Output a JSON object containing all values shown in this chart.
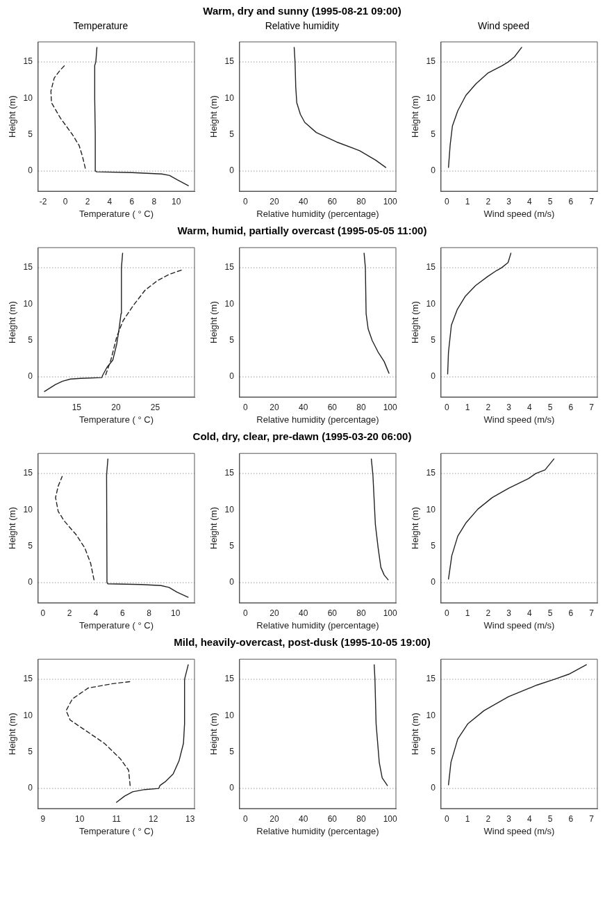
{
  "chart_data": [
    {
      "type": "line",
      "subtitle": "Temperature",
      "xlabel": "Temperature ( ° C)",
      "ylabel": "Height (m)",
      "xlim": [
        -2.45,
        11.65
      ],
      "xticks": [
        -2,
        0,
        2,
        4,
        6,
        8,
        10
      ],
      "ylim": [
        -2.76,
        17.76
      ],
      "yticks": [
        0,
        5,
        10,
        15
      ],
      "marker": "none",
      "ref_lines": [
        {
          "axis": "y",
          "value": 0,
          "color": "#999999",
          "line_style": "dotted"
        },
        {
          "axis": "y",
          "value": 15,
          "color": "#999999",
          "line_style": "dotted"
        }
      ],
      "series": [
        {
          "color": "#222222",
          "line_style": "solid",
          "x": [
            11.1,
            10.1,
            9.4,
            8.7,
            6,
            2.8,
            2.75,
            2.7,
            2.65,
            2.65,
            2.75,
            2.85
          ],
          "values": [
            -2,
            -1.2,
            -0.6,
            -0.4,
            -0.2,
            -0.1,
            0,
            5,
            10,
            14.5,
            15,
            17
          ]
        },
        {
          "color": "#222222",
          "line_style": "dashed",
          "x": [
            1.8,
            1.55,
            1.25,
            0.65,
            -0.45,
            -1.25,
            -1.3,
            -1,
            -0.45,
            0
          ],
          "values": [
            0.4,
            2,
            3.5,
            5,
            7.3,
            9.4,
            11,
            12.8,
            13.9,
            14.6
          ]
        }
      ]
    },
    {
      "type": "line",
      "title": "Warm, dry and sunny (1995-08-21 09:00)",
      "subtitle": "Relative humidity",
      "xlabel": "Relative humidity (percentage)",
      "ylabel": "Height (m)",
      "xlim": [
        -4,
        104
      ],
      "xticks": [
        0,
        20,
        40,
        60,
        80,
        100
      ],
      "ylim": [
        -2.76,
        17.76
      ],
      "yticks": [
        0,
        5,
        10,
        15
      ],
      "marker": "none",
      "ref_lines": [
        {
          "axis": "y",
          "value": 0,
          "color": "#999999",
          "line_style": "dotted"
        },
        {
          "axis": "y",
          "value": 15,
          "color": "#999999",
          "line_style": "dotted"
        }
      ],
      "series": [
        {
          "color": "#222222",
          "line_style": "solid",
          "x": [
            97,
            90,
            79,
            63,
            49,
            41,
            38,
            35.5,
            34.8,
            34.3,
            33.7
          ],
          "values": [
            0.5,
            1.5,
            2.8,
            4,
            5.3,
            6.7,
            7.8,
            9.4,
            11.5,
            15,
            17
          ]
        }
      ]
    },
    {
      "type": "line",
      "subtitle": "Wind speed",
      "xlabel": "Wind speed (m/s)",
      "ylabel": "Height (m)",
      "xlim": [
        -0.28,
        7.28
      ],
      "xticks": [
        0,
        1,
        2,
        3,
        4,
        5,
        6,
        7
      ],
      "ylim": [
        -2.76,
        17.76
      ],
      "yticks": [
        0,
        5,
        10,
        15
      ],
      "marker": "none",
      "ref_lines": [
        {
          "axis": "y",
          "value": 0,
          "color": "#999999",
          "line_style": "dotted"
        },
        {
          "axis": "y",
          "value": 15,
          "color": "#999999",
          "line_style": "dotted"
        }
      ],
      "series": [
        {
          "color": "#222222",
          "line_style": "solid",
          "x": [
            0.08,
            0.16,
            0.27,
            0.53,
            0.92,
            1.41,
            2,
            2.68,
            2.97,
            3.27,
            3.62
          ],
          "values": [
            0.5,
            3.55,
            6.2,
            8.3,
            10.4,
            12,
            13.5,
            14.5,
            15,
            15.7,
            17
          ]
        }
      ]
    },
    {
      "type": "line",
      "xlabel": "Temperature ( ° C)",
      "ylabel": "Height (m)",
      "xlim": [
        10.1,
        30
      ],
      "xticks": [
        15,
        20,
        25
      ],
      "ylim": [
        -2.76,
        17.76
      ],
      "yticks": [
        0,
        5,
        10,
        15
      ],
      "marker": "none",
      "ref_lines": [
        {
          "axis": "y",
          "value": 0,
          "color": "#999999",
          "line_style": "dotted"
        },
        {
          "axis": "y",
          "value": 15,
          "color": "#999999",
          "line_style": "dotted"
        }
      ],
      "series": [
        {
          "color": "#222222",
          "line_style": "solid",
          "x": [
            10.9,
            12.3,
            13.2,
            14.2,
            15.5,
            18.2,
            18.3,
            18.85,
            19.6,
            20.1,
            20.4,
            20.65,
            20.7,
            20.85
          ],
          "values": [
            -2,
            -1.05,
            -0.6,
            -0.3,
            -0.2,
            -0.1,
            0.2,
            1.3,
            2.3,
            4.5,
            6.6,
            8.7,
            15,
            17
          ]
        },
        {
          "color": "#222222",
          "line_style": "dashed",
          "x": [
            18.7,
            19.35,
            20.1,
            20.9,
            22.2,
            23.7,
            25.25,
            26.8,
            28.4
          ],
          "values": [
            0.3,
            2.3,
            5.5,
            7.7,
            9.8,
            11.9,
            13.2,
            14.1,
            14.7
          ]
        }
      ]
    },
    {
      "type": "line",
      "title": "Warm, humid, partially overcast (1995-05-05 11:00)",
      "xlabel": "Relative humidity (percentage)",
      "ylabel": "Height (m)",
      "xlim": [
        -4,
        104
      ],
      "xticks": [
        0,
        20,
        40,
        60,
        80,
        100
      ],
      "ylim": [
        -2.76,
        17.76
      ],
      "yticks": [
        0,
        5,
        10,
        15
      ],
      "marker": "none",
      "ref_lines": [
        {
          "axis": "y",
          "value": 0,
          "color": "#999999",
          "line_style": "dotted"
        },
        {
          "axis": "y",
          "value": 15,
          "color": "#999999",
          "line_style": "dotted"
        }
      ],
      "series": [
        {
          "color": "#222222",
          "line_style": "solid",
          "x": [
            99.2,
            95.9,
            91.7,
            87.6,
            84.8,
            83.4,
            82.9,
            82
          ],
          "values": [
            0.5,
            2.1,
            3.4,
            5,
            6.6,
            8.7,
            15,
            17
          ]
        }
      ]
    },
    {
      "type": "line",
      "xlabel": "Wind speed (m/s)",
      "ylabel": "Height (m)",
      "xlim": [
        -0.28,
        7.28
      ],
      "xticks": [
        0,
        1,
        2,
        3,
        4,
        5,
        6,
        7
      ],
      "ylim": [
        -2.76,
        17.76
      ],
      "yticks": [
        0,
        5,
        10,
        15
      ],
      "marker": "none",
      "ref_lines": [
        {
          "axis": "y",
          "value": 0,
          "color": "#999999",
          "line_style": "dotted"
        },
        {
          "axis": "y",
          "value": 15,
          "color": "#999999",
          "line_style": "dotted"
        }
      ],
      "series": [
        {
          "color": "#222222",
          "line_style": "solid",
          "x": [
            0.04,
            0.08,
            0.22,
            0.51,
            0.9,
            1.39,
            1.98,
            2.4,
            2.65,
            2.96,
            3.1
          ],
          "values": [
            0.4,
            3.4,
            7.1,
            9.3,
            11.1,
            12.55,
            13.8,
            14.6,
            15,
            15.7,
            17
          ]
        }
      ]
    },
    {
      "type": "line",
      "xlabel": "Temperature ( ° C)",
      "ylabel": "Height (m)",
      "xlim": [
        -0.36,
        11.43
      ],
      "xticks": [
        0,
        2,
        4,
        6,
        8,
        10
      ],
      "ylim": [
        -2.76,
        17.76
      ],
      "yticks": [
        0,
        5,
        10,
        15
      ],
      "marker": "none",
      "ref_lines": [
        {
          "axis": "y",
          "value": 0,
          "color": "#999999",
          "line_style": "dotted"
        },
        {
          "axis": "y",
          "value": 15,
          "color": "#999999",
          "line_style": "dotted"
        }
      ],
      "series": [
        {
          "color": "#222222",
          "line_style": "solid",
          "x": [
            10.95,
            10.1,
            9.5,
            8.9,
            7.4,
            4.9,
            4.83,
            4.8,
            4.9
          ],
          "values": [
            -2,
            -1.3,
            -0.65,
            -0.4,
            -0.25,
            -0.15,
            0,
            14.8,
            17
          ]
        },
        {
          "color": "#222222",
          "line_style": "dashed",
          "x": [
            3.85,
            3.6,
            3.15,
            2.5,
            1.6,
            1.15,
            0.95,
            1.15,
            1.45
          ],
          "values": [
            0.4,
            2.65,
            4.8,
            6.6,
            8.5,
            9.8,
            11.7,
            13.25,
            14.6
          ]
        }
      ]
    },
    {
      "type": "line",
      "title": "Cold, dry, clear, pre-dawn (1995-03-20 06:00)",
      "xlabel": "Relative humidity (percentage)",
      "ylabel": "Height (m)",
      "xlim": [
        -4,
        104
      ],
      "xticks": [
        0,
        20,
        40,
        60,
        80,
        100
      ],
      "ylim": [
        -2.76,
        17.76
      ],
      "yticks": [
        0,
        5,
        10,
        15
      ],
      "marker": "none",
      "ref_lines": [
        {
          "axis": "y",
          "value": 0,
          "color": "#999999",
          "line_style": "dotted"
        },
        {
          "axis": "y",
          "value": 15,
          "color": "#999999",
          "line_style": "dotted"
        }
      ],
      "series": [
        {
          "color": "#222222",
          "line_style": "solid",
          "x": [
            98.6,
            95.9,
            93.6,
            91.7,
            89.8,
            88.1,
            87
          ],
          "values": [
            0.4,
            1.05,
            2.1,
            4.8,
            8,
            14.8,
            17
          ]
        }
      ]
    },
    {
      "type": "line",
      "xlabel": "Wind speed (m/s)",
      "ylabel": "Height (m)",
      "xlim": [
        -0.28,
        7.28
      ],
      "xticks": [
        0,
        1,
        2,
        3,
        4,
        5,
        6,
        7
      ],
      "ylim": [
        -2.76,
        17.76
      ],
      "yticks": [
        0,
        5,
        10,
        15
      ],
      "marker": "none",
      "ref_lines": [
        {
          "axis": "y",
          "value": 0,
          "color": "#999999",
          "line_style": "dotted"
        },
        {
          "axis": "y",
          "value": 15,
          "color": "#999999",
          "line_style": "dotted"
        }
      ],
      "series": [
        {
          "color": "#222222",
          "line_style": "solid",
          "x": [
            0.08,
            0.24,
            0.53,
            0.92,
            1.5,
            2.2,
            3,
            3.95,
            4.3,
            4.75,
            5.18
          ],
          "values": [
            0.5,
            3.7,
            6.4,
            8.2,
            10.1,
            11.7,
            13,
            14.3,
            15,
            15.5,
            17
          ]
        }
      ]
    },
    {
      "type": "line",
      "xlabel": "Temperature ( ° C)",
      "ylabel": "Height (m)",
      "xlim": [
        8.87,
        13.12
      ],
      "xticks": [
        9,
        10,
        11,
        12,
        13
      ],
      "ylim": [
        -2.76,
        17.76
      ],
      "yticks": [
        0,
        5,
        10,
        15
      ],
      "marker": "none",
      "ref_lines": [
        {
          "axis": "y",
          "value": 0,
          "color": "#999999",
          "line_style": "dotted"
        },
        {
          "axis": "y",
          "value": 15,
          "color": "#999999",
          "line_style": "dotted"
        }
      ],
      "series": [
        {
          "color": "#222222",
          "line_style": "solid",
          "x": [
            11,
            11.22,
            11.44,
            11.77,
            12.15,
            12.18,
            12.32,
            12.54,
            12.7,
            12.82,
            12.85,
            12.85,
            12.95
          ],
          "values": [
            -1.9,
            -1.05,
            -0.45,
            -0.15,
            0,
            0.4,
            0.9,
            2,
            3.8,
            6.2,
            8.9,
            15,
            17
          ]
        },
        {
          "color": "#222222",
          "line_style": "dashed",
          "x": [
            11.37,
            11.33,
            11.1,
            10.67,
            10.12,
            9.74,
            9.63,
            9.8,
            10.23,
            10.9,
            11.4
          ],
          "values": [
            0.4,
            2.5,
            4.1,
            6.2,
            8.1,
            9.4,
            10.7,
            12.3,
            13.8,
            14.4,
            14.7
          ]
        }
      ]
    },
    {
      "type": "line",
      "title": "Mild, heavily-overcast, post-dusk (1995-10-05 19:00)",
      "xlabel": "Relative humidity (percentage)",
      "ylabel": "Height (m)",
      "xlim": [
        -4,
        104
      ],
      "xticks": [
        0,
        20,
        40,
        60,
        80,
        100
      ],
      "ylim": [
        -2.76,
        17.76
      ],
      "yticks": [
        0,
        5,
        10,
        15
      ],
      "marker": "none",
      "ref_lines": [
        {
          "axis": "y",
          "value": 0,
          "color": "#999999",
          "line_style": "dotted"
        },
        {
          "axis": "y",
          "value": 15,
          "color": "#999999",
          "line_style": "dotted"
        }
      ],
      "series": [
        {
          "color": "#222222",
          "line_style": "solid",
          "x": [
            98.1,
            94.5,
            92.5,
            90.3,
            89.5,
            89
          ],
          "values": [
            0.4,
            1.45,
            3.55,
            8.9,
            15,
            17
          ]
        }
      ]
    },
    {
      "type": "line",
      "xlabel": "Wind speed (m/s)",
      "ylabel": "Height (m)",
      "xlim": [
        -0.28,
        7.28
      ],
      "xticks": [
        0,
        1,
        2,
        3,
        4,
        5,
        6,
        7
      ],
      "ylim": [
        -2.76,
        17.76
      ],
      "yticks": [
        0,
        5,
        10,
        15
      ],
      "marker": "none",
      "ref_lines": [
        {
          "axis": "y",
          "value": 0,
          "color": "#999999",
          "line_style": "dotted"
        },
        {
          "axis": "y",
          "value": 15,
          "color": "#999999",
          "line_style": "dotted"
        }
      ],
      "series": [
        {
          "color": "#222222",
          "line_style": "solid",
          "x": [
            0.08,
            0.2,
            0.53,
            1.02,
            1.8,
            2.98,
            4.35,
            5.2,
            5.9,
            6.75
          ],
          "values": [
            0.5,
            3.6,
            6.8,
            8.9,
            10.7,
            12.6,
            14.2,
            15,
            15.7,
            17
          ]
        }
      ]
    }
  ]
}
